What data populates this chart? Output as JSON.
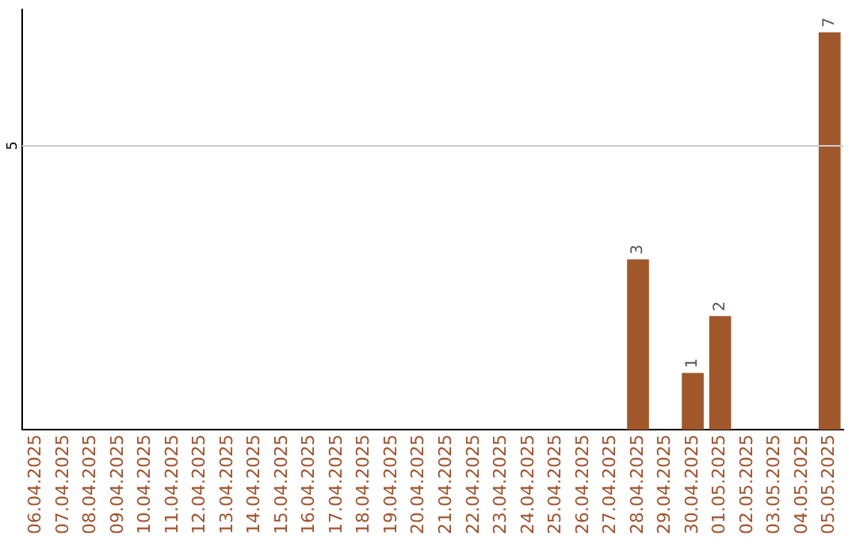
{
  "chart_data": {
    "type": "bar",
    "categories": [
      "06.04.2025",
      "07.04.2025",
      "08.04.2025",
      "09.04.2025",
      "10.04.2025",
      "11.04.2025",
      "12.04.2025",
      "13.04.2025",
      "14.04.2025",
      "15.04.2025",
      "16.04.2025",
      "17.04.2025",
      "18.04.2025",
      "19.04.2025",
      "20.04.2025",
      "21.04.2025",
      "22.04.2025",
      "23.04.2025",
      "24.04.2025",
      "25.04.2025",
      "26.04.2025",
      "27.04.2025",
      "28.04.2025",
      "29.04.2025",
      "30.04.2025",
      "01.05.2025",
      "02.05.2025",
      "03.05.2025",
      "04.05.2025",
      "05.05.2025"
    ],
    "values": [
      null,
      null,
      null,
      null,
      null,
      null,
      null,
      null,
      null,
      null,
      null,
      null,
      null,
      null,
      null,
      null,
      null,
      null,
      null,
      null,
      null,
      null,
      3,
      null,
      1,
      2,
      null,
      null,
      null,
      7
    ],
    "data_labels": true,
    "color": "#a0572a",
    "ylim": [
      0,
      7.4
    ],
    "ref_lines": [
      {
        "axis": "y",
        "value": 5,
        "label": "5",
        "color": "#cccccc"
      }
    ],
    "legend": false
  }
}
